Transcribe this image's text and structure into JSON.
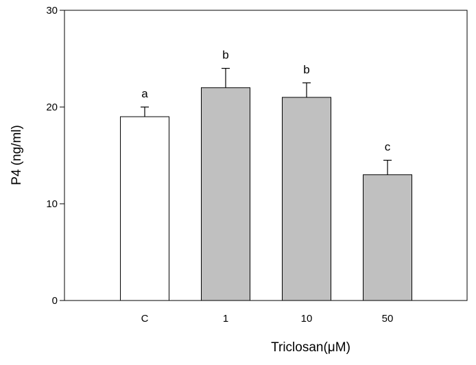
{
  "chart_data": {
    "type": "bar",
    "title": "",
    "xlabel": "Triclosan(μM)",
    "ylabel": "P4 (ng/ml)",
    "ylim": [
      0,
      30
    ],
    "yticks": [
      0,
      10,
      20,
      30
    ],
    "categories": [
      "C",
      "1",
      "10",
      "50"
    ],
    "values": [
      19,
      22,
      21,
      13
    ],
    "errors": [
      1,
      2,
      1.5,
      1.5
    ],
    "significance_labels": [
      "a",
      "b",
      "b",
      "c"
    ],
    "bar_colors": [
      "#ffffff",
      "#c0c0c0",
      "#c0c0c0",
      "#c0c0c0"
    ],
    "grid": false,
    "legend": "none"
  }
}
